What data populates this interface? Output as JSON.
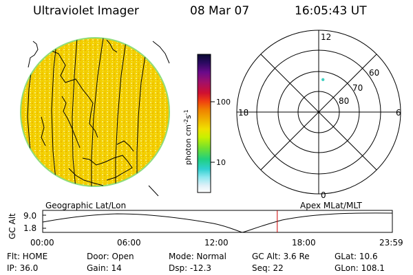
{
  "header": {
    "instrument": "Ultraviolet Imager",
    "date": "08 Mar 07",
    "time": "16:05:43 UT"
  },
  "colors": {
    "disk_fill": "#f3d000",
    "disk_edge": "#8fdc7a",
    "map_lines": "#000000",
    "position_marker": "#40d0c0",
    "time_marker": "#cc0000"
  },
  "colorbar": {
    "label": "photon cm",
    "label_sup1": "-2",
    "label_mid": "s",
    "label_sup2": "-1",
    "ticks": [
      "100",
      "10"
    ],
    "scale": "log",
    "stops": [
      "#0a0a30",
      "#2a0a60",
      "#6a0a8a",
      "#a0106a",
      "#d01030",
      "#f04010",
      "#f08000",
      "#f0b000",
      "#f0e000",
      "#c8f000",
      "#70e030",
      "#20d080",
      "#30d0d0",
      "#90e8f0",
      "#e0f0f8",
      "#ffffff"
    ]
  },
  "polar": {
    "label_12": "12",
    "label_6": "6",
    "label_18": "18",
    "label_0": "0",
    "lat_60": "60",
    "lat_70": "70",
    "lat_80": "80",
    "marker_mlat": 74,
    "marker_mlt": 12.5
  },
  "timeline": {
    "left_label": "Geographic Lat/Lon",
    "right_label": "Apex MLat/MLT",
    "axis_title": "GC Alt",
    "y_top": "9.0",
    "y_bottom": "1.8",
    "x_ticks": [
      "00:00",
      "06:00",
      "12:00",
      "18:00",
      "23:59"
    ],
    "current_time_hours": 16.1
  },
  "status": {
    "flt": "Flt: HOME",
    "ip": "IP: 36.0",
    "door": "Door: Open",
    "gain": "Gain: 14",
    "mode": "Mode: Normal",
    "dsp": "Dsp:   -12.3",
    "gc_alt": "GC Alt: 3.6 Re",
    "seq": "Seq: 22",
    "glat": "GLat: 10.6",
    "glon": "GLon: 108.1"
  }
}
